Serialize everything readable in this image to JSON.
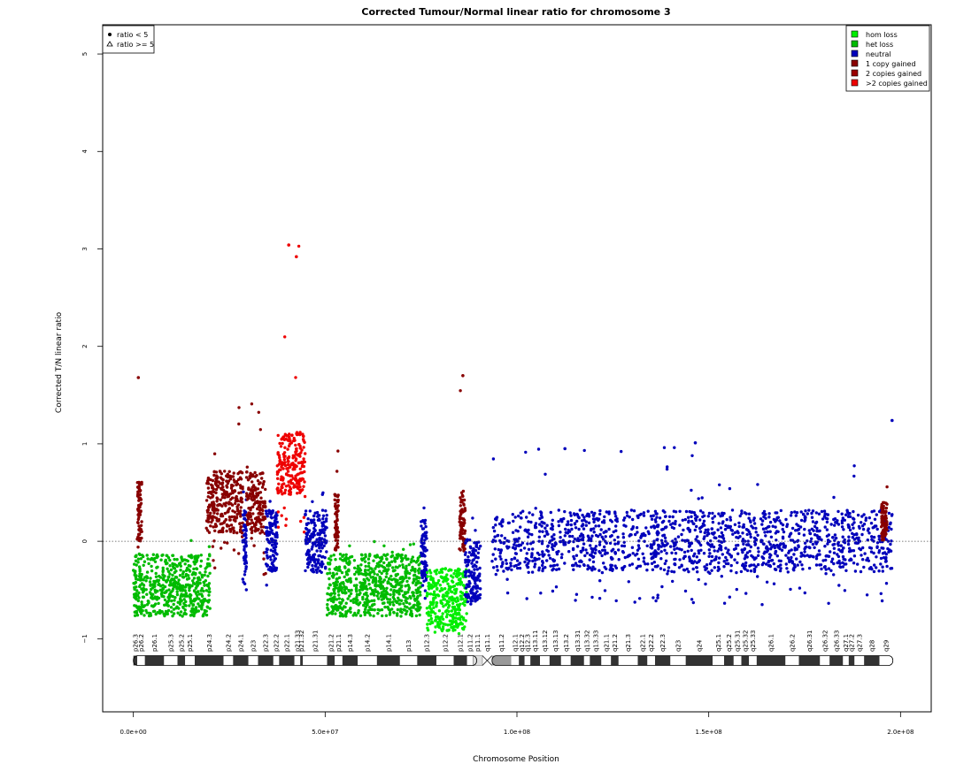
{
  "chart_data": {
    "type": "scatter",
    "title": "Corrected Tumour/Normal linear ratio for chromosome  3",
    "xlabel": "Chromosome Position",
    "ylabel": "Corrected T/N linear ratio",
    "xlim": [
      -8000000,
      208000000
    ],
    "ylim": [
      -1.75,
      5.3
    ],
    "x_ticks": [
      0,
      50000000,
      100000000,
      150000000,
      200000000
    ],
    "x_tick_labels": [
      "0.0e+00",
      "5.0e+07",
      "1.0e+08",
      "1.5e+08",
      "2.0e+08"
    ],
    "y_ticks": [
      -1,
      0,
      1,
      2,
      3,
      4,
      5
    ],
    "y_tick_labels": [
      "−1",
      "0",
      "1",
      "2",
      "3",
      "4",
      "5"
    ],
    "reference_line": 0,
    "colors": {
      "hom_loss": "#00ee00",
      "het_loss": "#00bb00",
      "neutral": "#0000bb",
      "one_copy_gained": "#880000",
      "two_copies_gained": "#990000",
      "gt_two_copies_gained": "#ee0000"
    },
    "shape_legend": {
      "position": "top-left",
      "items": [
        {
          "symbol": "circle",
          "label": "ratio < 5"
        },
        {
          "symbol": "triangle",
          "label": "ratio >= 5"
        }
      ]
    },
    "state_legend": {
      "position": "top-right",
      "items": [
        {
          "key": "hom_loss",
          "label": "hom loss",
          "color": "#00ee00"
        },
        {
          "key": "het_loss",
          "label": "het loss",
          "color": "#00bb00"
        },
        {
          "key": "neutral",
          "label": "neutral",
          "color": "#0000bb"
        },
        {
          "key": "one_copy_gained",
          "label": "1 copy gained",
          "color": "#880000"
        },
        {
          "key": "two_copies_gained",
          "label": "2 copies gained",
          "color": "#990000"
        },
        {
          "key": "gt_two_copies_gained",
          "label": ">2 copies gained",
          "color": "#ee0000"
        }
      ]
    },
    "segments": [
      {
        "start": 0,
        "end": 20000000,
        "state": "het_loss",
        "mean": -0.45,
        "low": -0.78,
        "high": 0.05
      },
      {
        "start": 1000000,
        "end": 2200000,
        "state": "one_copy_gained",
        "mean": 0.3,
        "low": -0.1,
        "high": 1.68
      },
      {
        "start": 19000000,
        "end": 28500000,
        "state": "one_copy_gained",
        "mean": 0.4,
        "low": -0.3,
        "high": 1.42
      },
      {
        "start": 28500000,
        "end": 29500000,
        "state": "neutral",
        "mean": 0.0,
        "low": -0.5,
        "high": 0.62
      },
      {
        "start": 29500000,
        "end": 34500000,
        "state": "one_copy_gained",
        "mean": 0.4,
        "low": -0.35,
        "high": 1.42
      },
      {
        "start": 34500000,
        "end": 37500000,
        "state": "neutral",
        "mean": 0.0,
        "low": -0.45,
        "high": 0.45
      },
      {
        "start": 37500000,
        "end": 44800000,
        "state": "gt_two_copies_gained",
        "mean": 0.8,
        "low": 0.0,
        "high": 3.05
      },
      {
        "start": 44800000,
        "end": 50500000,
        "state": "neutral",
        "mean": 0.0,
        "low": -0.35,
        "high": 0.55
      },
      {
        "start": 52500000,
        "end": 53500000,
        "state": "one_copy_gained",
        "mean": 0.2,
        "low": -0.1,
        "high": 1.05
      },
      {
        "start": 50500000,
        "end": 75000000,
        "state": "het_loss",
        "mean": -0.45,
        "low": -0.78,
        "high": 0.05
      },
      {
        "start": 75000000,
        "end": 76500000,
        "state": "neutral",
        "mean": -0.1,
        "low": -0.65,
        "high": 0.38
      },
      {
        "start": 76500000,
        "end": 87000000,
        "state": "hom_loss",
        "mean": -0.6,
        "low": -0.95,
        "high": -0.1
      },
      {
        "start": 85000000,
        "end": 86500000,
        "state": "one_copy_gained",
        "mean": 0.2,
        "low": -0.1,
        "high": 1.7
      },
      {
        "start": 86500000,
        "end": 90500000,
        "state": "neutral",
        "mean": -0.3,
        "low": -0.65,
        "high": 0.45
      },
      {
        "start": 93500000,
        "end": 198000000,
        "state": "neutral",
        "mean": 0.0,
        "low": -0.65,
        "high": 1.02
      },
      {
        "start": 195000000,
        "end": 196500000,
        "state": "one_copy_gained",
        "mean": 0.2,
        "low": 0.0,
        "high": 0.88
      }
    ],
    "outliers": [
      {
        "x": 197800000,
        "y": 1.24,
        "state": "neutral"
      },
      {
        "x": 146500000,
        "y": 1.01,
        "state": "neutral"
      },
      {
        "x": 112500000,
        "y": 0.95,
        "state": "neutral"
      },
      {
        "x": 40500000,
        "y": 3.04,
        "state": "gt_two_copies_gained"
      },
      {
        "x": 42500000,
        "y": 2.92,
        "state": "gt_two_copies_gained"
      },
      {
        "x": 1300000,
        "y": 1.68,
        "state": "one_copy_gained"
      },
      {
        "x": 85900000,
        "y": 1.7,
        "state": "one_copy_gained"
      }
    ],
    "ideogram": {
      "centromere": [
        89500000,
        93500000
      ],
      "bands": [
        {
          "name": "p26.3",
          "start": 0,
          "end": 1000000,
          "stain": "gpos"
        },
        {
          "name": "p26.2",
          "start": 1000000,
          "end": 3000000,
          "stain": "gneg"
        },
        {
          "name": "p26.1",
          "start": 3000000,
          "end": 8000000,
          "stain": "gpos"
        },
        {
          "name": "p25.3",
          "start": 8000000,
          "end": 11500000,
          "stain": "gneg"
        },
        {
          "name": "p25.2",
          "start": 11500000,
          "end": 13500000,
          "stain": "gpos"
        },
        {
          "name": "p25.1",
          "start": 13500000,
          "end": 16000000,
          "stain": "gneg"
        },
        {
          "name": "p24.3",
          "start": 16000000,
          "end": 23500000,
          "stain": "gpos"
        },
        {
          "name": "p24.2",
          "start": 23500000,
          "end": 26000000,
          "stain": "gneg"
        },
        {
          "name": "p24.1",
          "start": 26000000,
          "end": 30000000,
          "stain": "gpos"
        },
        {
          "name": "p23",
          "start": 30000000,
          "end": 32500000,
          "stain": "gneg"
        },
        {
          "name": "p22.3",
          "start": 32500000,
          "end": 36500000,
          "stain": "gpos"
        },
        {
          "name": "p22.2",
          "start": 36500000,
          "end": 38000000,
          "stain": "gneg"
        },
        {
          "name": "p22.1",
          "start": 38000000,
          "end": 42000000,
          "stain": "gpos"
        },
        {
          "name": "p21.33",
          "start": 42000000,
          "end": 43500000,
          "stain": "gneg"
        },
        {
          "name": "p21.32",
          "start": 43500000,
          "end": 44200000,
          "stain": "gpos"
        },
        {
          "name": "p21.31",
          "start": 44200000,
          "end": 50500000,
          "stain": "gneg"
        },
        {
          "name": "p21.2",
          "start": 50500000,
          "end": 52500000,
          "stain": "gpos"
        },
        {
          "name": "p21.1",
          "start": 52500000,
          "end": 54500000,
          "stain": "gneg"
        },
        {
          "name": "p14.3",
          "start": 54500000,
          "end": 58500000,
          "stain": "gpos"
        },
        {
          "name": "p14.2",
          "start": 58500000,
          "end": 63500000,
          "stain": "gneg"
        },
        {
          "name": "p14.1",
          "start": 63500000,
          "end": 69500000,
          "stain": "gpos"
        },
        {
          "name": "p13",
          "start": 69500000,
          "end": 74000000,
          "stain": "gneg"
        },
        {
          "name": "p12.3",
          "start": 74000000,
          "end": 79000000,
          "stain": "gpos"
        },
        {
          "name": "p12.2",
          "start": 79000000,
          "end": 83500000,
          "stain": "gneg"
        },
        {
          "name": "p12.1",
          "start": 83500000,
          "end": 87000000,
          "stain": "gpos"
        },
        {
          "name": "p11.2",
          "start": 87000000,
          "end": 88500000,
          "stain": "gneg"
        },
        {
          "name": "p11.1",
          "start": 88500000,
          "end": 91000000,
          "stain": "stalk"
        },
        {
          "name": "q11.1",
          "start": 91000000,
          "end": 93500000,
          "stain": "acen"
        },
        {
          "name": "q11.2",
          "start": 93500000,
          "end": 98500000,
          "stain": "gvar"
        },
        {
          "name": "q12.1",
          "start": 98500000,
          "end": 100500000,
          "stain": "gneg"
        },
        {
          "name": "q12.2",
          "start": 100500000,
          "end": 102000000,
          "stain": "gpos"
        },
        {
          "name": "q12.3",
          "start": 102000000,
          "end": 103500000,
          "stain": "gneg"
        },
        {
          "name": "q13.11",
          "start": 103500000,
          "end": 106000000,
          "stain": "gpos"
        },
        {
          "name": "q13.12",
          "start": 106000000,
          "end": 108500000,
          "stain": "gneg"
        },
        {
          "name": "q13.13",
          "start": 108500000,
          "end": 111500000,
          "stain": "gpos"
        },
        {
          "name": "q13.2",
          "start": 111500000,
          "end": 114000000,
          "stain": "gneg"
        },
        {
          "name": "q13.31",
          "start": 114000000,
          "end": 117500000,
          "stain": "gpos"
        },
        {
          "name": "q13.32",
          "start": 117500000,
          "end": 119000000,
          "stain": "gneg"
        },
        {
          "name": "q13.33",
          "start": 119000000,
          "end": 122000000,
          "stain": "gpos"
        },
        {
          "name": "q21.1",
          "start": 122000000,
          "end": 124500000,
          "stain": "gneg"
        },
        {
          "name": "q21.2",
          "start": 124500000,
          "end": 126500000,
          "stain": "gpos"
        },
        {
          "name": "q21.3",
          "start": 126500000,
          "end": 131500000,
          "stain": "gneg"
        },
        {
          "name": "q22.1",
          "start": 131500000,
          "end": 134000000,
          "stain": "gpos"
        },
        {
          "name": "q22.2",
          "start": 134000000,
          "end": 136000000,
          "stain": "gneg"
        },
        {
          "name": "q22.3",
          "start": 136000000,
          "end": 140000000,
          "stain": "gpos"
        },
        {
          "name": "q23",
          "start": 140000000,
          "end": 144000000,
          "stain": "gneg"
        },
        {
          "name": "q24",
          "start": 144000000,
          "end": 151000000,
          "stain": "gpos"
        },
        {
          "name": "q25.1",
          "start": 151000000,
          "end": 154000000,
          "stain": "gneg"
        },
        {
          "name": "q25.2",
          "start": 154000000,
          "end": 156500000,
          "stain": "gpos"
        },
        {
          "name": "q25.31",
          "start": 156500000,
          "end": 158500000,
          "stain": "gneg"
        },
        {
          "name": "q25.32",
          "start": 158500000,
          "end": 160500000,
          "stain": "gpos"
        },
        {
          "name": "q25.33",
          "start": 160500000,
          "end": 162500000,
          "stain": "gneg"
        },
        {
          "name": "q26.1",
          "start": 162500000,
          "end": 170000000,
          "stain": "gpos"
        },
        {
          "name": "q26.2",
          "start": 170000000,
          "end": 173500000,
          "stain": "gneg"
        },
        {
          "name": "q26.31",
          "start": 173500000,
          "end": 179000000,
          "stain": "gpos"
        },
        {
          "name": "q26.32",
          "start": 179000000,
          "end": 181500000,
          "stain": "gneg"
        },
        {
          "name": "q26.33",
          "start": 181500000,
          "end": 185000000,
          "stain": "gpos"
        },
        {
          "name": "q27.1",
          "start": 185000000,
          "end": 186500000,
          "stain": "gneg"
        },
        {
          "name": "q27.2",
          "start": 186500000,
          "end": 188000000,
          "stain": "gpos"
        },
        {
          "name": "q27.3",
          "start": 188000000,
          "end": 190500000,
          "stain": "gneg"
        },
        {
          "name": "q28",
          "start": 190500000,
          "end": 194500000,
          "stain": "gpos"
        },
        {
          "name": "q29",
          "start": 194500000,
          "end": 198000000,
          "stain": "gneg"
        }
      ]
    }
  }
}
